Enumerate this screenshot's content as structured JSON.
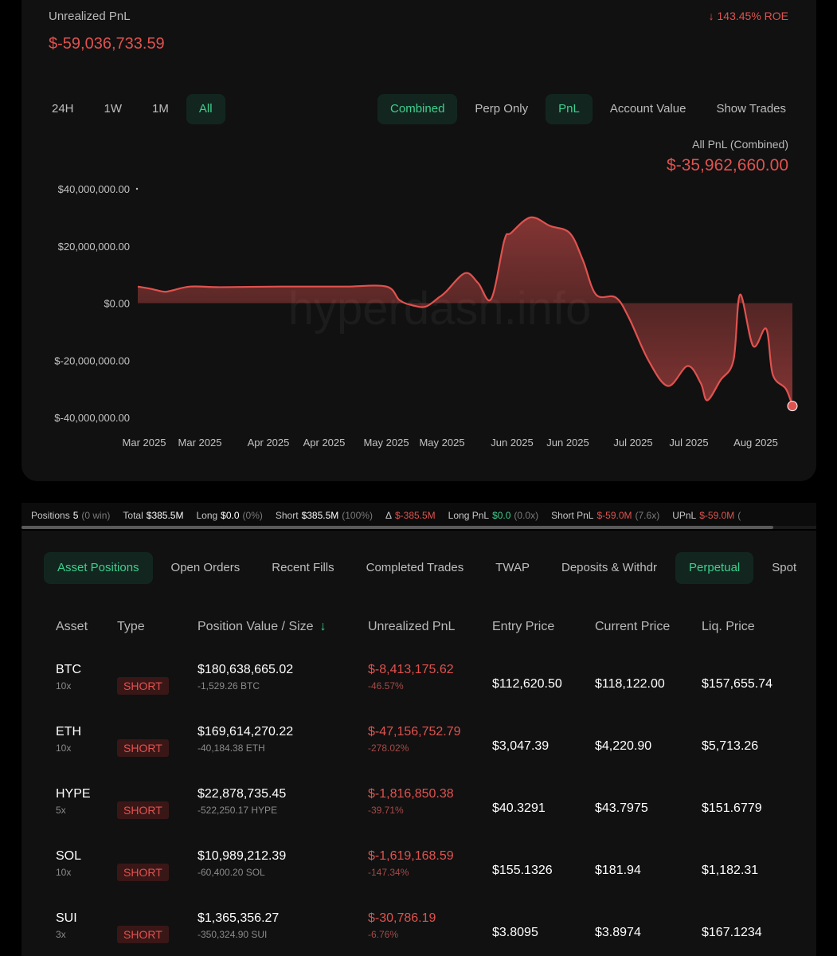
{
  "header": {
    "unrealized_label": "Unrealized PnL",
    "unrealized_value": "$-59,036,733.59",
    "roe": "↓ 143.45% ROE"
  },
  "time_buttons": [
    {
      "label": "24H",
      "active": false
    },
    {
      "label": "1W",
      "active": false
    },
    {
      "label": "1M",
      "active": false
    },
    {
      "label": "All",
      "active": true
    }
  ],
  "view_buttons": [
    {
      "label": "Combined",
      "active": true
    },
    {
      "label": "Perp Only",
      "active": false
    },
    {
      "label": "PnL",
      "active": true
    },
    {
      "label": "Account Value",
      "active": false
    },
    {
      "label": "Show Trades",
      "active": false
    }
  ],
  "chart_header": {
    "label": "All PnL (Combined)",
    "value": "$-35,962,660.00"
  },
  "chart_data": {
    "type": "area",
    "y_ticks": [
      "$40,000,000.00",
      "$20,000,000.00",
      "$0.00",
      "$-20,000,000.00",
      "$-40,000,000.00"
    ],
    "x_ticks": [
      "Mar 2025",
      "Mar 2025",
      "Apr 2025",
      "Apr 2025",
      "May 2025",
      "May 2025",
      "Jun 2025",
      "Jun 2025",
      "Jul 2025",
      "Jul 2025",
      "Aug 2025"
    ],
    "ylim": [
      -40000000,
      40000000
    ],
    "watermark": "hyperdash.info",
    "color": "#e0524f",
    "series": [
      {
        "x": [
          0,
          2,
          4,
          5,
          8,
          12,
          17,
          22,
          27,
          32,
          38,
          40,
          42,
          44,
          46,
          47,
          50,
          52,
          54,
          56,
          57,
          60,
          63,
          66,
          68,
          70,
          73,
          75,
          78,
          81,
          84,
          86,
          87,
          89,
          91,
          92,
          94,
          96,
          97,
          99,
          100
        ],
        "values": [
          5800000,
          5000000,
          4000000,
          4300000,
          5800000,
          5600000,
          5700000,
          5800000,
          5800000,
          5800000,
          5800000,
          1000000,
          -800000,
          -1200000,
          2000000,
          3800000,
          10500000,
          7000000,
          1500000,
          22000000,
          24500000,
          30000000,
          27000000,
          24500000,
          15000000,
          3000000,
          2000000,
          -5000000,
          -20000000,
          -29000000,
          -22000000,
          -28000000,
          -34000000,
          -27000000,
          -20000000,
          3000000,
          -15000000,
          -9000000,
          -25000000,
          -30000000,
          -36000000
        ]
      }
    ]
  },
  "stats": [
    {
      "key": "Positions",
      "value": "5",
      "sub": "(0 win)",
      "color": "white"
    },
    {
      "key": "Total",
      "value": "$385.5M",
      "sub": "",
      "color": "white"
    },
    {
      "key": "Long",
      "value": "$0.0",
      "sub": "(0%)",
      "color": "white"
    },
    {
      "key": "Short",
      "value": "$385.5M",
      "sub": "(100%)",
      "color": "white"
    },
    {
      "key": "Δ",
      "value": "$-385.5M",
      "sub": "",
      "color": "red"
    },
    {
      "key": "Long PnL",
      "value": "$0.0",
      "sub": "(0.0x)",
      "color": "green"
    },
    {
      "key": "Short PnL",
      "value": "$-59.0M",
      "sub": "(7.6x)",
      "color": "red"
    },
    {
      "key": "UPnL",
      "value": "$-59.0M",
      "sub": "(",
      "color": "red"
    }
  ],
  "tabs": [
    {
      "label": "Asset Positions",
      "active": true
    },
    {
      "label": "Open Orders",
      "active": false
    },
    {
      "label": "Recent Fills",
      "active": false
    },
    {
      "label": "Completed Trades",
      "active": false
    },
    {
      "label": "TWAP",
      "active": false
    },
    {
      "label": "Deposits & Withdr",
      "active": false
    },
    {
      "label": "Perpetual",
      "active": true
    },
    {
      "label": "Spot",
      "active": false
    }
  ],
  "table": {
    "headers": [
      "Asset",
      "Type",
      "Position Value / Size",
      "Unrealized PnL",
      "Entry Price",
      "Current Price",
      "Liq. Price"
    ],
    "sort_icon": "↓",
    "rows": [
      {
        "asset": "BTC",
        "leverage": "10x",
        "type": "SHORT",
        "value": "$180,638,665.02",
        "size": "-1,529.26 BTC",
        "pnl": "$-8,413,175.62",
        "pnl_pct": "-46.57%",
        "entry": "$112,620.50",
        "current": "$118,122.00",
        "liq": "$157,655.74"
      },
      {
        "asset": "ETH",
        "leverage": "10x",
        "type": "SHORT",
        "value": "$169,614,270.22",
        "size": "-40,184.38 ETH",
        "pnl": "$-47,156,752.79",
        "pnl_pct": "-278.02%",
        "entry": "$3,047.39",
        "current": "$4,220.90",
        "liq": "$5,713.26"
      },
      {
        "asset": "HYPE",
        "leverage": "5x",
        "type": "SHORT",
        "value": "$22,878,735.45",
        "size": "-522,250.17 HYPE",
        "pnl": "$-1,816,850.38",
        "pnl_pct": "-39.71%",
        "entry": "$40.3291",
        "current": "$43.7975",
        "liq": "$151.6779"
      },
      {
        "asset": "SOL",
        "leverage": "10x",
        "type": "SHORT",
        "value": "$10,989,212.39",
        "size": "-60,400.20 SOL",
        "pnl": "$-1,619,168.59",
        "pnl_pct": "-147.34%",
        "entry": "$155.1326",
        "current": "$181.94",
        "liq": "$1,182.31"
      },
      {
        "asset": "SUI",
        "leverage": "3x",
        "type": "SHORT",
        "value": "$1,365,356.27",
        "size": "-350,324.90 SUI",
        "pnl": "$-30,786.19",
        "pnl_pct": "-6.76%",
        "entry": "$3.8095",
        "current": "$3.8974",
        "liq": "$167.1234"
      }
    ]
  }
}
